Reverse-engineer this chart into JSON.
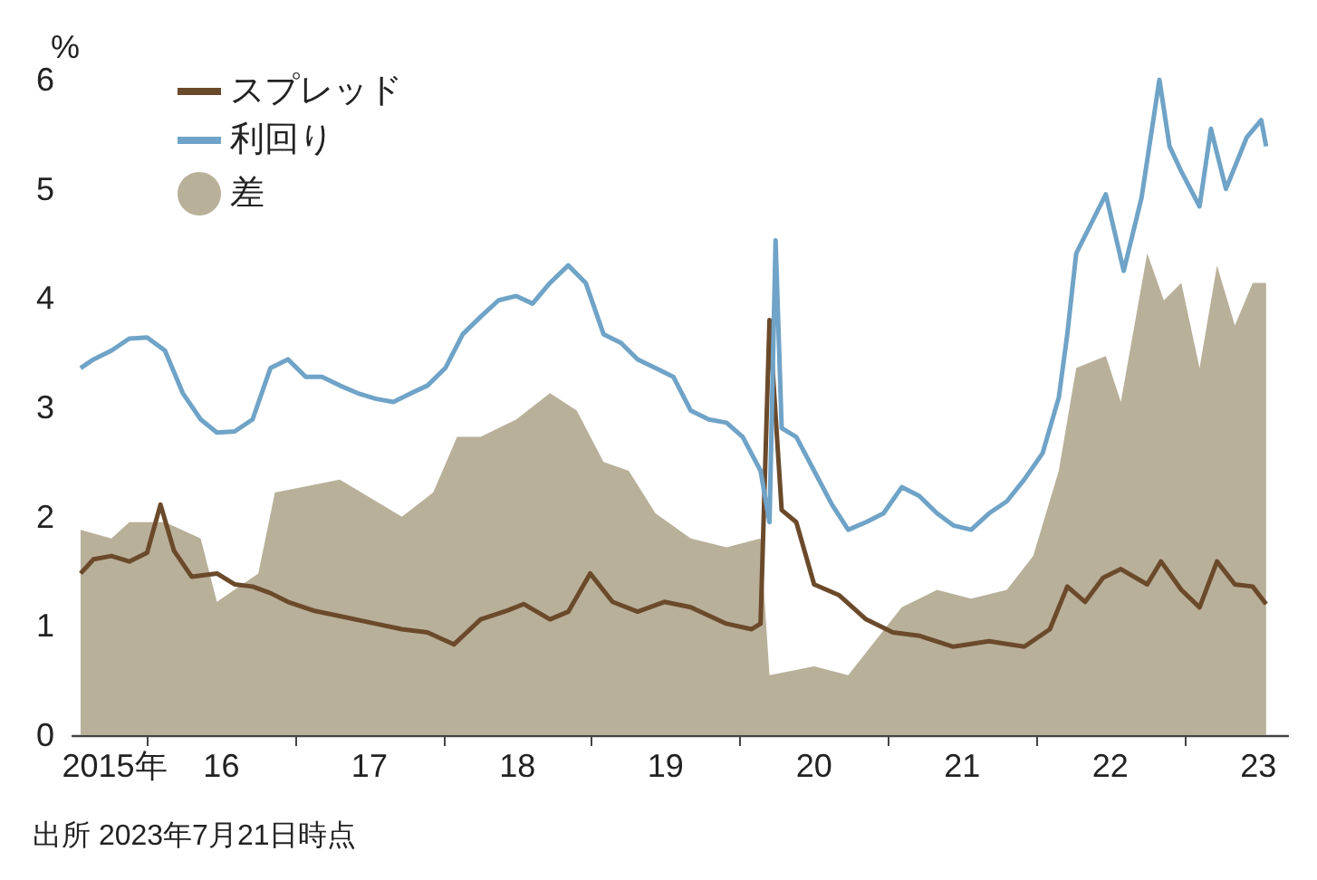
{
  "chart_data": {
    "type": "line",
    "ylabel": "%",
    "annotations": [
      "出所 2023年7月21日時点"
    ],
    "xlim": [
      "2015-07-01",
      "2023-09-13"
    ],
    "xticks": [
      {
        "value": "2015-10-13",
        "label": "2015年"
      },
      {
        "value": "2016-01-01",
        "label": null
      },
      {
        "value": "2016-07-02",
        "label": "16"
      },
      {
        "value": "2017-01-01",
        "label": null
      },
      {
        "value": "2017-07-02",
        "label": "17"
      },
      {
        "value": "2018-01-01",
        "label": null
      },
      {
        "value": "2018-07-02",
        "label": "18"
      },
      {
        "value": "2019-01-01",
        "label": null
      },
      {
        "value": "2019-07-02",
        "label": "19"
      },
      {
        "value": "2020-01-01",
        "label": null
      },
      {
        "value": "2020-07-02",
        "label": "20"
      },
      {
        "value": "2021-01-01",
        "label": null
      },
      {
        "value": "2021-07-02",
        "label": "21"
      },
      {
        "value": "2022-01-01",
        "label": null
      },
      {
        "value": "2022-07-02",
        "label": "22"
      },
      {
        "value": "2023-01-01",
        "label": null
      },
      {
        "value": "2023-07-02",
        "label": "23"
      }
    ],
    "ylim": [
      0,
      6
    ],
    "yticks": [
      0,
      1,
      2,
      3,
      4,
      5,
      6
    ],
    "grid": false,
    "legend": "top left",
    "series": [
      {
        "name": "スプレッド",
        "color": "#6b4a2b",
        "x": [
          "2015-07-21",
          "2015-08-22",
          "2015-10-05",
          "2015-11-18",
          "2016-01-01",
          "2016-02-03",
          "2016-03-07",
          "2016-04-20",
          "2016-06-21",
          "2016-08-04",
          "2016-09-17",
          "2016-10-31",
          "2016-12-13",
          "2017-02-14",
          "2017-04-20",
          "2017-07-17",
          "2017-09-20",
          "2017-11-22",
          "2018-01-26",
          "2018-04-02",
          "2018-06-07",
          "2018-07-17",
          "2018-09-20",
          "2018-11-04",
          "2018-12-28",
          "2019-02-21",
          "2019-04-24",
          "2019-06-29",
          "2019-09-02",
          "2019-11-29",
          "2020-01-30",
          "2020-02-21",
          "2020-03-14",
          "2020-04-13",
          "2020-05-19",
          "2020-07-02",
          "2020-09-02",
          "2020-11-07",
          "2021-01-12",
          "2021-03-18",
          "2021-06-10",
          "2021-09-06",
          "2021-12-02",
          "2022-02-03",
          "2022-03-18",
          "2022-05-01",
          "2022-06-14",
          "2022-07-28",
          "2022-10-01",
          "2022-11-04",
          "2022-12-24",
          "2023-02-07",
          "2023-03-22",
          "2023-05-05",
          "2023-06-18",
          "2023-07-21"
        ],
        "values": [
          1.48,
          1.61,
          1.64,
          1.59,
          1.67,
          2.11,
          1.69,
          1.45,
          1.48,
          1.38,
          1.36,
          1.3,
          1.22,
          1.14,
          1.09,
          1.02,
          0.97,
          0.94,
          0.83,
          1.06,
          1.14,
          1.2,
          1.06,
          1.13,
          1.48,
          1.22,
          1.13,
          1.22,
          1.17,
          1.02,
          0.97,
          1.02,
          3.8,
          2.06,
          1.95,
          1.38,
          1.28,
          1.06,
          0.94,
          0.91,
          0.81,
          0.86,
          0.81,
          0.97,
          1.36,
          1.22,
          1.44,
          1.52,
          1.38,
          1.59,
          1.33,
          1.17,
          1.59,
          1.38,
          1.36,
          1.2
        ]
      },
      {
        "name": "利回り",
        "color": "#6fa3c7",
        "x": [
          "2015-07-21",
          "2015-08-22",
          "2015-10-05",
          "2015-11-18",
          "2016-01-01",
          "2016-02-14",
          "2016-03-29",
          "2016-05-12",
          "2016-06-21",
          "2016-08-04",
          "2016-09-17",
          "2016-10-31",
          "2016-12-13",
          "2017-01-26",
          "2017-03-07",
          "2017-04-20",
          "2017-06-03",
          "2017-07-17",
          "2017-08-30",
          "2017-10-13",
          "2017-11-22",
          "2018-01-05",
          "2018-02-17",
          "2018-04-02",
          "2018-05-16",
          "2018-06-29",
          "2018-08-08",
          "2018-09-20",
          "2018-11-04",
          "2018-12-17",
          "2019-01-30",
          "2019-03-14",
          "2019-04-24",
          "2019-06-07",
          "2019-07-21",
          "2019-09-02",
          "2019-10-16",
          "2019-11-29",
          "2020-01-08",
          "2020-02-21",
          "2020-03-14",
          "2020-03-29",
          "2020-04-13",
          "2020-05-19",
          "2020-07-02",
          "2020-08-15",
          "2020-09-24",
          "2020-11-07",
          "2020-12-20",
          "2021-02-03",
          "2021-03-18",
          "2021-05-01",
          "2021-06-10",
          "2021-07-24",
          "2021-09-06",
          "2021-10-20",
          "2021-12-02",
          "2022-01-16",
          "2022-02-25",
          "2022-03-18",
          "2022-04-09",
          "2022-06-21",
          "2022-08-04",
          "2022-09-17",
          "2022-10-31",
          "2022-11-25",
          "2022-12-24",
          "2023-02-07",
          "2023-03-07",
          "2023-04-13",
          "2023-06-03",
          "2023-07-09",
          "2023-07-21"
        ],
        "values": [
          3.36,
          3.44,
          3.52,
          3.63,
          3.64,
          3.52,
          3.13,
          2.89,
          2.77,
          2.78,
          2.89,
          3.36,
          3.44,
          3.28,
          3.28,
          3.2,
          3.13,
          3.08,
          3.05,
          3.13,
          3.2,
          3.36,
          3.67,
          3.83,
          3.98,
          4.02,
          3.95,
          4.14,
          4.3,
          4.14,
          3.67,
          3.59,
          3.44,
          3.36,
          3.28,
          2.97,
          2.89,
          2.86,
          2.73,
          2.42,
          1.95,
          4.53,
          2.81,
          2.73,
          2.42,
          2.11,
          1.88,
          1.95,
          2.03,
          2.27,
          2.19,
          2.03,
          1.92,
          1.88,
          2.03,
          2.14,
          2.34,
          2.58,
          3.09,
          3.67,
          4.41,
          4.95,
          4.25,
          4.92,
          6.0,
          5.39,
          5.16,
          4.84,
          5.55,
          5.0,
          5.47,
          5.63,
          5.39
        ]
      },
      {
        "name": "差",
        "type": "area",
        "color": "#b9b09a",
        "x": [
          "2015-07-21",
          "2015-10-05",
          "2015-11-18",
          "2016-02-14",
          "2016-05-12",
          "2016-06-21",
          "2016-10-01",
          "2016-11-11",
          "2017-04-20",
          "2017-09-20",
          "2017-12-06",
          "2018-02-03",
          "2018-04-02",
          "2018-06-29",
          "2018-09-20",
          "2018-11-25",
          "2019-01-30",
          "2019-04-02",
          "2019-06-07",
          "2019-09-02",
          "2019-11-29",
          "2020-02-21",
          "2020-03-14",
          "2020-07-02",
          "2020-09-24",
          "2020-11-29",
          "2021-02-03",
          "2021-05-01",
          "2021-07-24",
          "2021-10-20",
          "2021-12-24",
          "2022-02-25",
          "2022-04-09",
          "2022-06-21",
          "2022-07-28",
          "2022-10-01",
          "2022-11-11",
          "2022-12-24",
          "2023-02-07",
          "2023-03-22",
          "2023-05-05",
          "2023-06-18",
          "2023-07-21"
        ],
        "values": [
          1.88,
          1.8,
          1.95,
          1.95,
          1.8,
          1.22,
          1.48,
          2.22,
          2.34,
          2.0,
          2.22,
          2.73,
          2.73,
          2.89,
          3.13,
          2.97,
          2.5,
          2.42,
          2.03,
          1.8,
          1.72,
          1.8,
          0.55,
          0.63,
          0.55,
          0.86,
          1.17,
          1.33,
          1.25,
          1.33,
          1.64,
          2.42,
          3.36,
          3.47,
          3.05,
          4.41,
          3.98,
          4.14,
          3.36,
          4.3,
          3.75,
          4.14,
          4.14
        ]
      }
    ]
  }
}
